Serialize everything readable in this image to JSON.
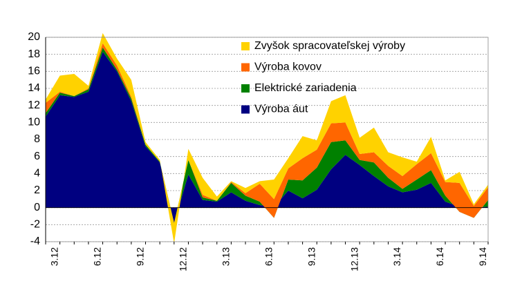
{
  "chart_data": {
    "type": "stacked_area",
    "categories": [
      "3.12",
      null,
      null,
      "6.12",
      null,
      null,
      "9.12",
      null,
      null,
      "12.12",
      null,
      null,
      "3.13",
      null,
      null,
      "6.13",
      null,
      null,
      "9.13",
      null,
      null,
      "12.13",
      null,
      null,
      "3.14",
      null,
      null,
      "6.14",
      null,
      null,
      "9.14",
      null
    ],
    "series": [
      {
        "name": "Výroba áut",
        "color": "#000080",
        "values": [
          10.7,
          13.2,
          13.0,
          13.6,
          18.3,
          16.0,
          12.5,
          7.2,
          5.3,
          -1.8,
          3.9,
          0.9,
          0.7,
          1.8,
          0.8,
          0.3,
          0.1,
          2.0,
          1.1,
          2.1,
          4.5,
          6.2,
          5.0,
          3.7,
          2.5,
          1.8,
          2.1,
          2.9,
          0.7,
          0.1,
          0.0,
          0.1
        ]
      },
      {
        "name": "Elektrické zariadenia",
        "color": "#008000",
        "values": [
          0.4,
          0.3,
          0.1,
          0.3,
          0.5,
          0.2,
          0.3,
          0.2,
          0.1,
          0,
          1.7,
          0.3,
          0.1,
          1.1,
          0.6,
          0.4,
          -1.3,
          1.3,
          2.1,
          2.6,
          3.2,
          1.7,
          0.6,
          1.6,
          1.0,
          0.4,
          1.2,
          1.5,
          0.7,
          -0.6,
          -1.2,
          0.8
        ]
      },
      {
        "name": "Výroba kovov",
        "color": "#ff6600",
        "values": [
          1.2,
          0.1,
          0,
          0.1,
          0.5,
          0.5,
          0.2,
          0,
          0,
          0,
          0,
          0.3,
          0,
          0.1,
          0.3,
          2.1,
          2.2,
          1.3,
          2.6,
          2.1,
          2.2,
          2.1,
          0.7,
          1.2,
          1.4,
          1.5,
          1.8,
          2.0,
          1.6,
          3.4,
          1.4,
          1.5
        ]
      },
      {
        "name": "Zvyšok spracovateľskej výroby",
        "color": "#ffd200",
        "values": [
          0.4,
          1.9,
          2.6,
          0.3,
          1.2,
          0.8,
          2.0,
          0.3,
          0.2,
          -2.4,
          1.3,
          2.0,
          0.5,
          0.1,
          0.6,
          0.3,
          2.3,
          1.2,
          2.6,
          1.1,
          2.6,
          3.2,
          1.9,
          2.9,
          1.6,
          2.2,
          0.3,
          1.9,
          0.2,
          1.3,
          0.2,
          0.3
        ]
      }
    ],
    "ylim": [
      -4,
      20
    ],
    "yticks": [
      -4,
      -2,
      0,
      2,
      4,
      6,
      8,
      10,
      12,
      14,
      16,
      18,
      20
    ],
    "grid": true
  }
}
